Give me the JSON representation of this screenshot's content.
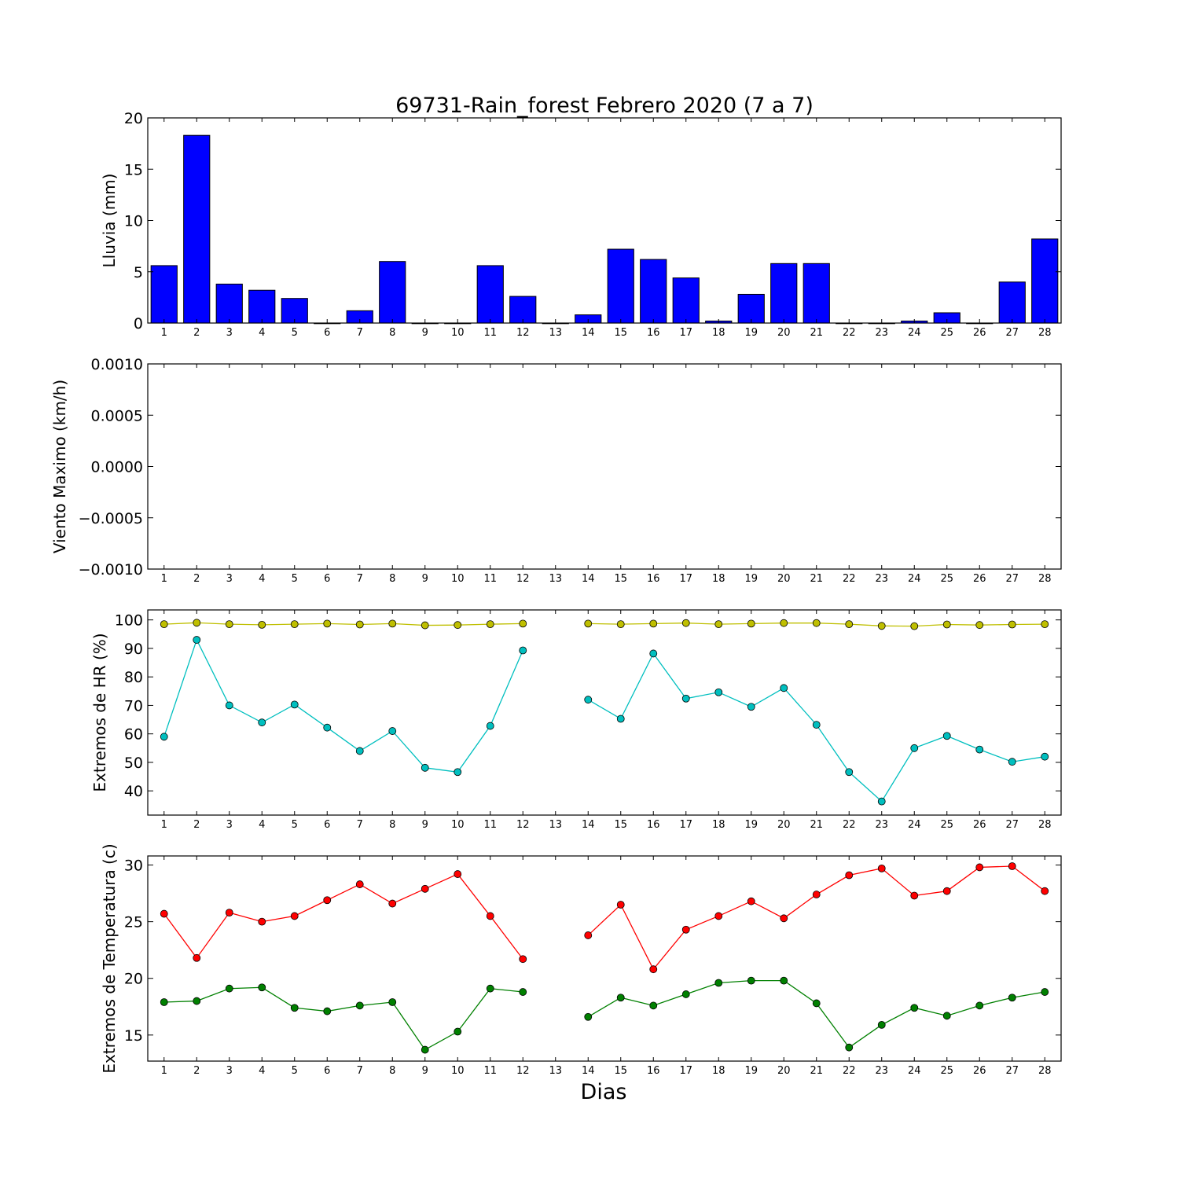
{
  "figure": {
    "title": "69731-Rain_forest Febrero 2020  (7 a 7)",
    "xlabel": "Dias"
  },
  "chart_data": [
    {
      "type": "bar",
      "ylabel": "Lluvia (mm)",
      "ylim": [
        0,
        20
      ],
      "yticks": [
        0,
        5,
        10,
        15,
        20
      ],
      "x": [
        1,
        2,
        3,
        4,
        5,
        6,
        7,
        8,
        9,
        10,
        11,
        12,
        13,
        14,
        15,
        16,
        17,
        18,
        19,
        20,
        21,
        22,
        23,
        24,
        25,
        26,
        27,
        28
      ],
      "xtick_labels": [
        "1",
        "2",
        "3",
        "4",
        "5",
        "6",
        "7",
        "8",
        "9",
        "10",
        "11",
        "12",
        "13",
        "14",
        "15",
        "16",
        "17",
        "18",
        "19",
        "20",
        "21",
        "22",
        "23",
        "24",
        "25",
        "26",
        "27",
        "28"
      ],
      "values": [
        5.6,
        18.3,
        3.8,
        3.2,
        2.4,
        0,
        1.2,
        6.0,
        0,
        0,
        5.6,
        2.6,
        0,
        0.8,
        7.2,
        6.2,
        4.4,
        0.2,
        2.8,
        5.8,
        5.8,
        0,
        0,
        0.2,
        1.0,
        0,
        4.0,
        8.2
      ],
      "color": "#0000ff"
    },
    {
      "type": "line",
      "ylabel": "Viento Maximo (km/h)",
      "ylim": [
        -0.001,
        0.001
      ],
      "yticks": [
        -0.001,
        -0.0005,
        0,
        0.0005,
        0.001
      ],
      "ytick_labels": [
        "−0.0010",
        "−0.0005",
        "0.0000",
        "0.0005",
        "0.0010"
      ],
      "x": [
        1,
        2,
        3,
        4,
        5,
        6,
        7,
        8,
        9,
        10,
        11,
        12,
        13,
        14,
        15,
        16,
        17,
        18,
        19,
        20,
        21,
        22,
        23,
        24,
        25,
        26,
        27,
        28
      ],
      "xtick_labels": [
        "1",
        "2",
        "3",
        "4",
        "5",
        "6",
        "7",
        "8",
        "9",
        "10",
        "11",
        "12",
        "13",
        "14",
        "15",
        "16",
        "17",
        "18",
        "19",
        "20",
        "21",
        "22",
        "23",
        "24",
        "25",
        "26",
        "27",
        "28"
      ],
      "series": []
    },
    {
      "type": "line",
      "ylabel": "Extremos de HR (%)",
      "ylim": [
        31.5,
        103.5
      ],
      "yticks": [
        40,
        50,
        60,
        70,
        80,
        90,
        100
      ],
      "x": [
        1,
        2,
        3,
        4,
        5,
        6,
        7,
        8,
        9,
        10,
        11,
        12,
        13,
        14,
        15,
        16,
        17,
        18,
        19,
        20,
        21,
        22,
        23,
        24,
        25,
        26,
        27,
        28
      ],
      "xtick_labels": [
        "1",
        "2",
        "3",
        "4",
        "5",
        "6",
        "7",
        "8",
        "9",
        "10",
        "11",
        "12",
        "13",
        "14",
        "15",
        "16",
        "17",
        "18",
        "19",
        "20",
        "21",
        "22",
        "23",
        "24",
        "25",
        "26",
        "27",
        "28"
      ],
      "series": [
        {
          "color": "#bfbf00",
          "values": [
            98.5,
            99,
            98.5,
            98.3,
            98.5,
            98.7,
            98.4,
            98.7,
            98.1,
            98.2,
            98.5,
            98.7,
            null,
            98.7,
            98.5,
            98.7,
            98.9,
            98.5,
            98.7,
            98.9,
            98.9,
            98.5,
            97.9,
            97.8,
            98.4,
            98.2,
            98.4,
            98.5
          ]
        },
        {
          "color": "#00bfbf",
          "values": [
            59,
            93,
            70,
            64,
            70.3,
            62.2,
            54,
            61,
            48.1,
            46.6,
            62.8,
            89.3,
            null,
            72,
            65.3,
            88.2,
            72.4,
            74.6,
            69.5,
            76.1,
            63.2,
            46.6,
            36.3,
            55,
            59.3,
            54.5,
            50.2,
            52
          ]
        }
      ]
    },
    {
      "type": "line",
      "ylabel": "Extremos de Temperatura (c)",
      "ylim": [
        12.7,
        30.8
      ],
      "yticks": [
        15,
        20,
        25,
        30
      ],
      "x": [
        1,
        2,
        3,
        4,
        5,
        6,
        7,
        8,
        9,
        10,
        11,
        12,
        13,
        14,
        15,
        16,
        17,
        18,
        19,
        20,
        21,
        22,
        23,
        24,
        25,
        26,
        27,
        28
      ],
      "xtick_labels": [
        "1",
        "2",
        "3",
        "4",
        "5",
        "6",
        "7",
        "8",
        "9",
        "10",
        "11",
        "12",
        "13",
        "14",
        "15",
        "16",
        "17",
        "18",
        "19",
        "20",
        "21",
        "22",
        "23",
        "24",
        "25",
        "26",
        "27",
        "28"
      ],
      "series": [
        {
          "color": "#ff0000",
          "values": [
            25.7,
            21.8,
            25.8,
            25.0,
            25.5,
            26.9,
            28.3,
            26.6,
            27.9,
            29.2,
            25.5,
            21.7,
            null,
            23.8,
            26.5,
            20.8,
            24.3,
            25.5,
            26.8,
            25.3,
            27.4,
            29.1,
            29.7,
            27.3,
            27.7,
            29.8,
            29.9,
            27.7
          ]
        },
        {
          "color": "#008000",
          "values": [
            17.9,
            18.0,
            19.1,
            19.2,
            17.4,
            17.1,
            17.6,
            17.9,
            13.7,
            15.3,
            19.1,
            18.8,
            null,
            16.6,
            18.3,
            17.6,
            18.6,
            19.6,
            19.8,
            19.8,
            17.8,
            13.9,
            15.9,
            17.4,
            16.7,
            17.6,
            18.3,
            18.8
          ]
        }
      ]
    }
  ]
}
